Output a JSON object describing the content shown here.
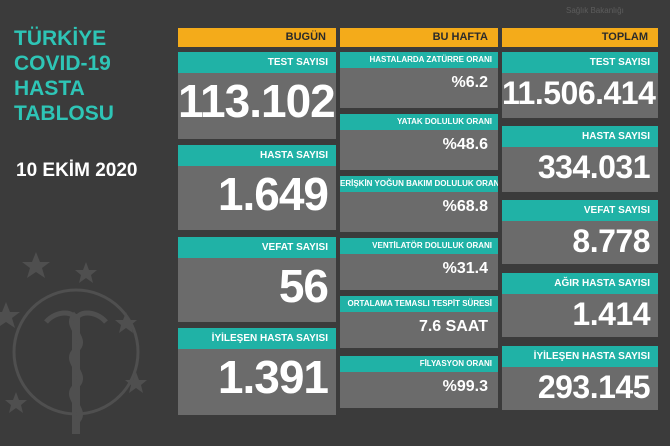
{
  "title": {
    "lines": [
      "TÜRKİYE",
      "COVID-19",
      "HASTA",
      "TABLOSU"
    ]
  },
  "date": "10 EKİM 2020",
  "watermark": "Sağlık Bakanlığı",
  "columns": {
    "bugun": {
      "header": "BUGÜN",
      "cards": [
        {
          "label": "TEST SAYISI",
          "value": "113.102"
        },
        {
          "label": "HASTA SAYISI",
          "value": "1.649"
        },
        {
          "label": "VEFAT SAYISI",
          "value": "56"
        },
        {
          "label": "İYİLEŞEN HASTA SAYISI",
          "value": "1.391"
        }
      ]
    },
    "bu_hafta": {
      "header": "BU HAFTA",
      "cards": [
        {
          "label": "HASTALARDA ZATÜRRE ORANI",
          "value": "%6.2"
        },
        {
          "label": "YATAK DOLULUK ORANI",
          "value": "%48.6"
        },
        {
          "label": "ERİŞKİN YOĞUN BAKIM DOLULUK ORANI",
          "value": "%68.8"
        },
        {
          "label": "VENTİLATÖR DOLULUK ORANI",
          "value": "%31.4"
        },
        {
          "label": "ORTALAMA TEMASLI TESPİT SÜRESİ",
          "value": "7.6 SAAT"
        },
        {
          "label": "FİLYASYON ORANI",
          "value": "%99.3"
        }
      ]
    },
    "toplam": {
      "header": "TOPLAM",
      "cards": [
        {
          "label": "TEST SAYISI",
          "value": "11.506.414"
        },
        {
          "label": "HASTA SAYISI",
          "value": "334.031"
        },
        {
          "label": "VEFAT SAYISI",
          "value": "8.778"
        },
        {
          "label": "AĞIR HASTA SAYISI",
          "value": "1.414"
        },
        {
          "label": "İYİLEŞEN HASTA SAYISI",
          "value": "293.145"
        }
      ]
    }
  },
  "colors": {
    "background": "#3b3b3b",
    "title": "#2ec5b6",
    "header": "#f4ab1a",
    "label_bar": "#20b2a6",
    "card": "#6b6b6b"
  }
}
